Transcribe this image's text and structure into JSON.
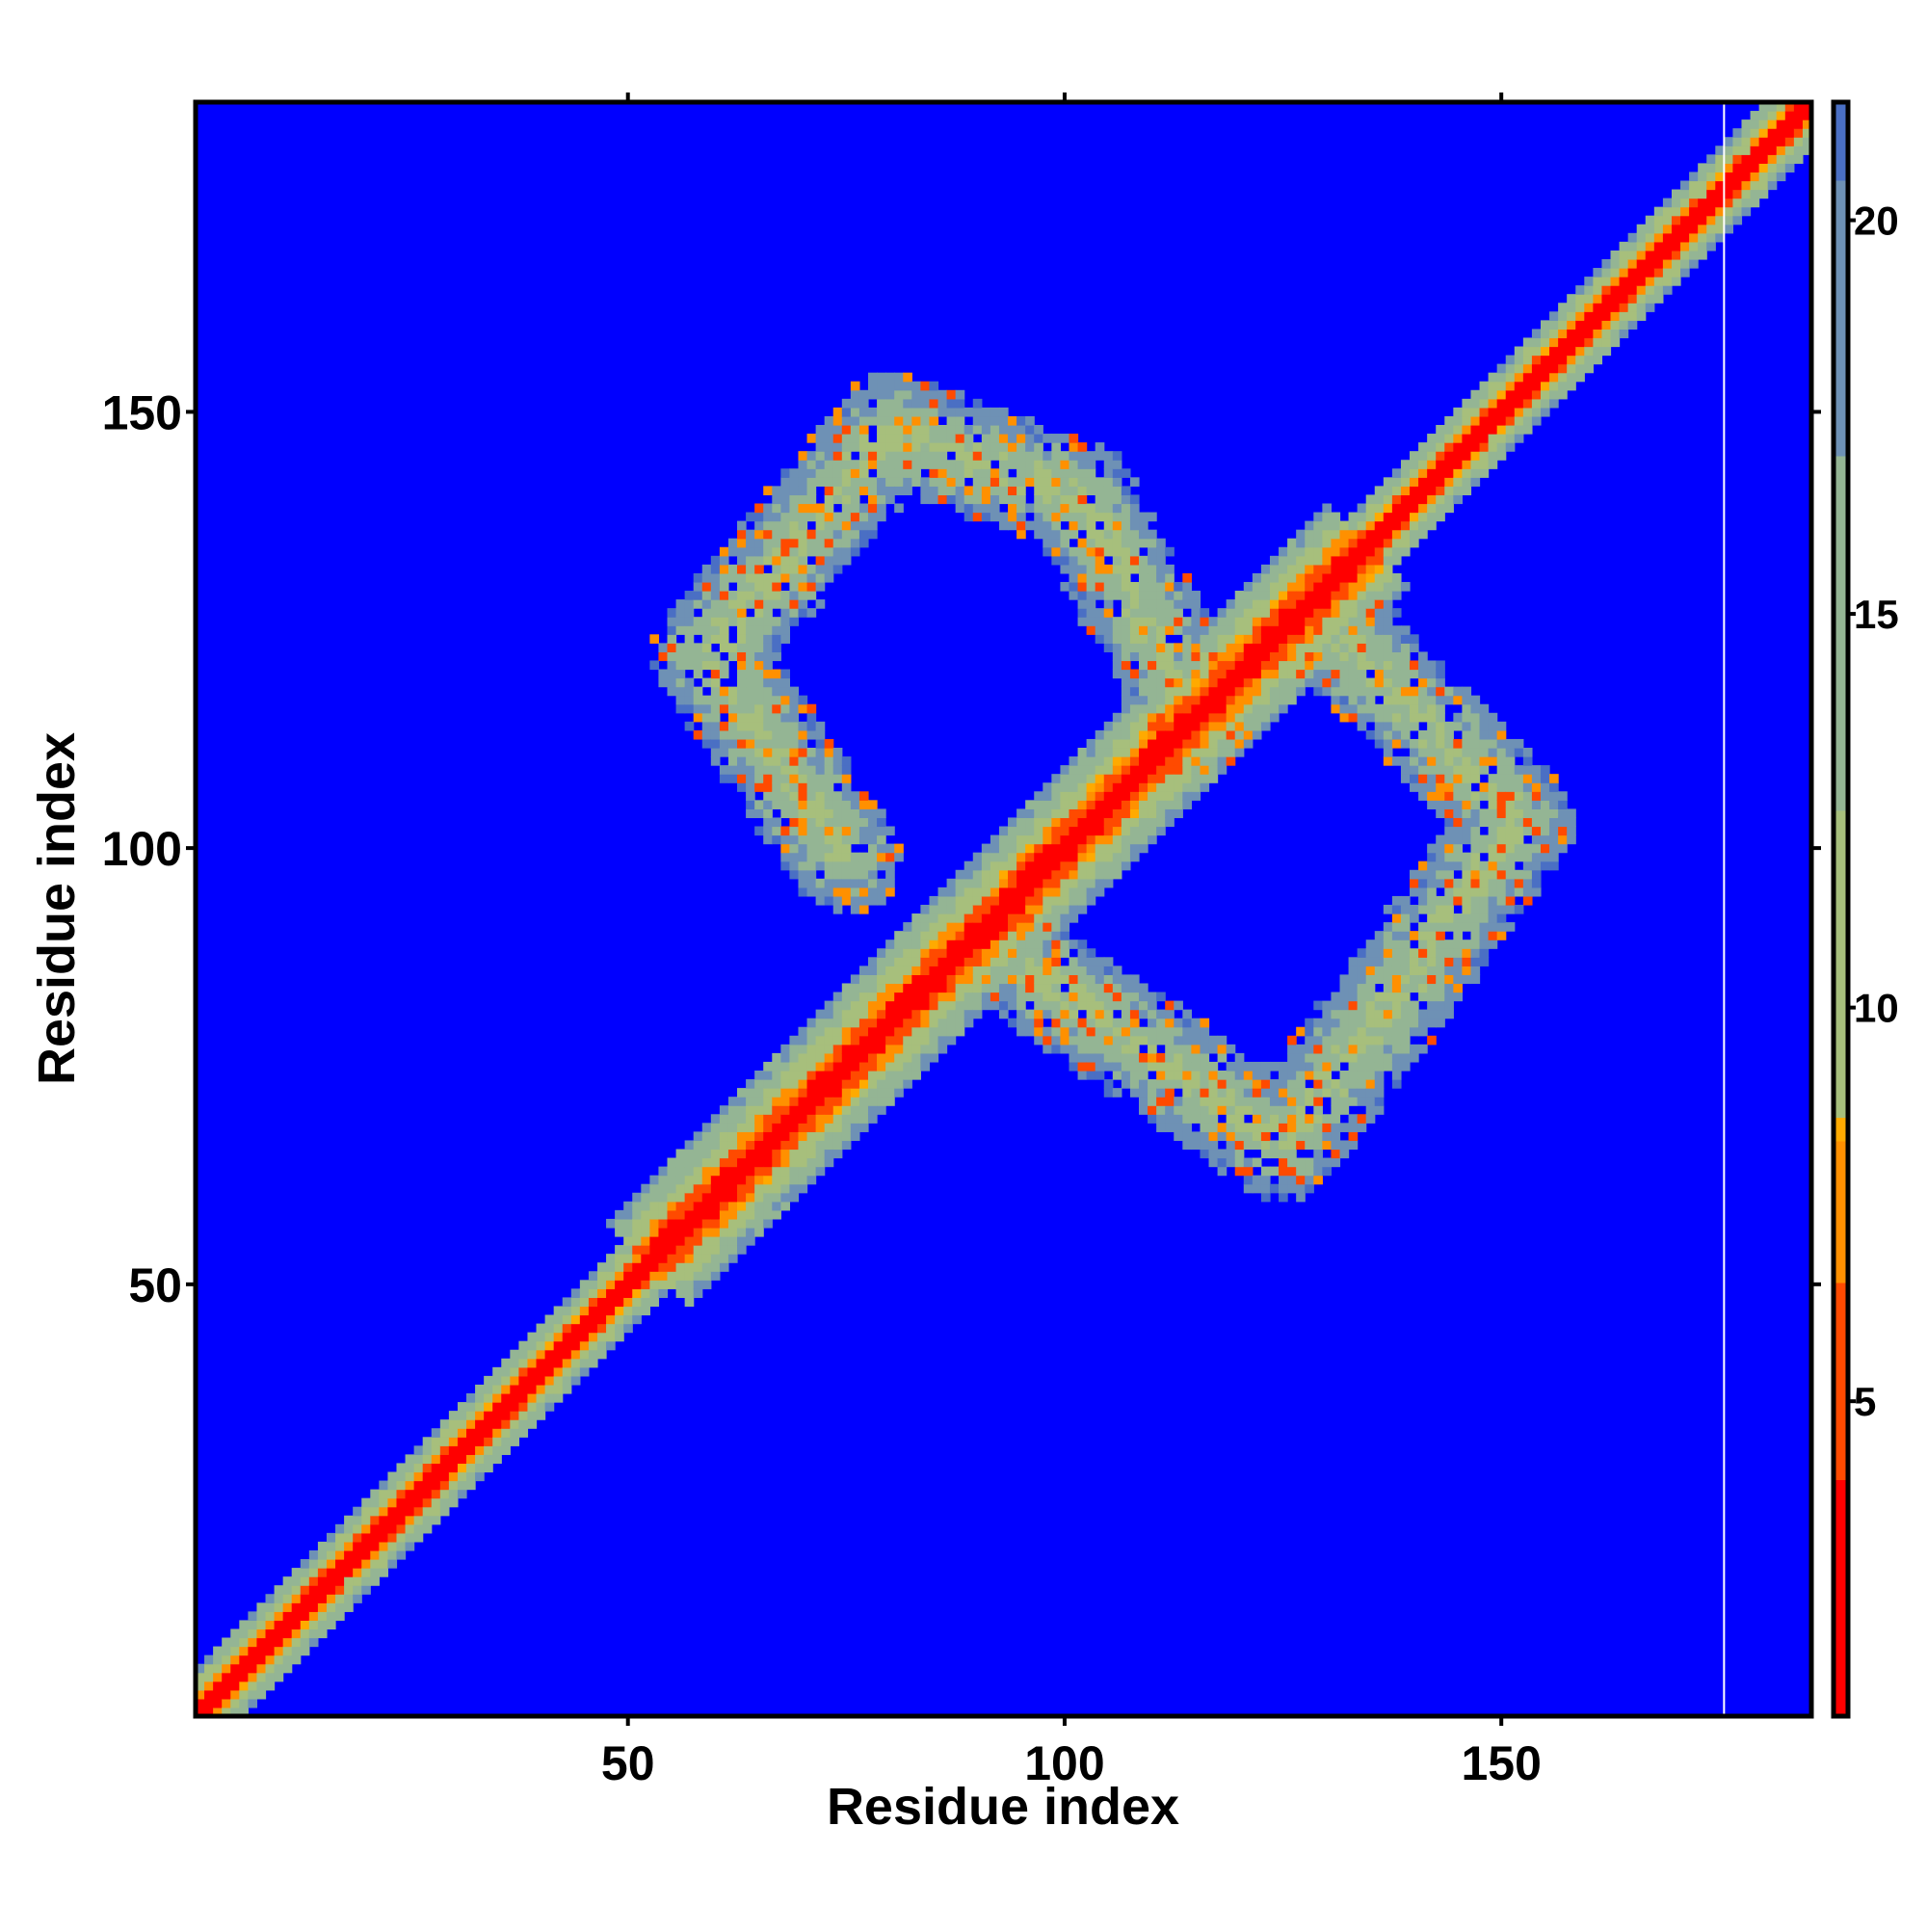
{
  "chart_data": {
    "type": "heatmap",
    "title": "",
    "xlabel": "Residue index",
    "ylabel": "Residue index",
    "xlim": [
      1,
      185
    ],
    "ylim": [
      1,
      185
    ],
    "x_ticks": [
      50,
      100,
      150
    ],
    "y_ticks": [
      50,
      100,
      150
    ],
    "grid": false,
    "legend": "colorbar right",
    "colorbar": {
      "ticks": [
        5,
        10,
        15,
        20
      ],
      "range": [
        1,
        21.5
      ],
      "stops": [
        {
          "value": 1,
          "color": "#ff0000"
        },
        {
          "value": 4,
          "color": "#ff4a00"
        },
        {
          "value": 6.5,
          "color": "#ff9000"
        },
        {
          "value": 8.3,
          "color": "#ffaa00"
        },
        {
          "value": 8.6,
          "color": "#a7bf7c"
        },
        {
          "value": 12.5,
          "color": "#94b594"
        },
        {
          "value": 17,
          "color": "#6e91b5"
        },
        {
          "value": 20.5,
          "color": "#4a6fc4"
        },
        {
          "value": 21.5,
          "color": "#0000ff"
        }
      ]
    },
    "background_value": 21.5,
    "background_color": "#0000ff",
    "structure": {
      "diagonal_band": {
        "from": 1,
        "to": 185
      },
      "loop_contacts": [
        {
          "i_range": [
            54,
            80
          ],
          "j_range": [
            96,
            135
          ],
          "description": "upper-left arm"
        },
        {
          "i_range": [
            80,
            96
          ],
          "j_range": [
            120,
            160
          ],
          "description": "upper-left lobe top"
        },
        {
          "i_range": [
            96,
            125
          ],
          "j_range": [
            57,
            82
          ],
          "description": "lower-right lobe bottom"
        },
        {
          "i_range": [
            133,
            165
          ],
          "j_range": [
            77,
            105
          ],
          "description": "lower-right lobe side"
        }
      ],
      "blank_column": 176
    }
  }
}
